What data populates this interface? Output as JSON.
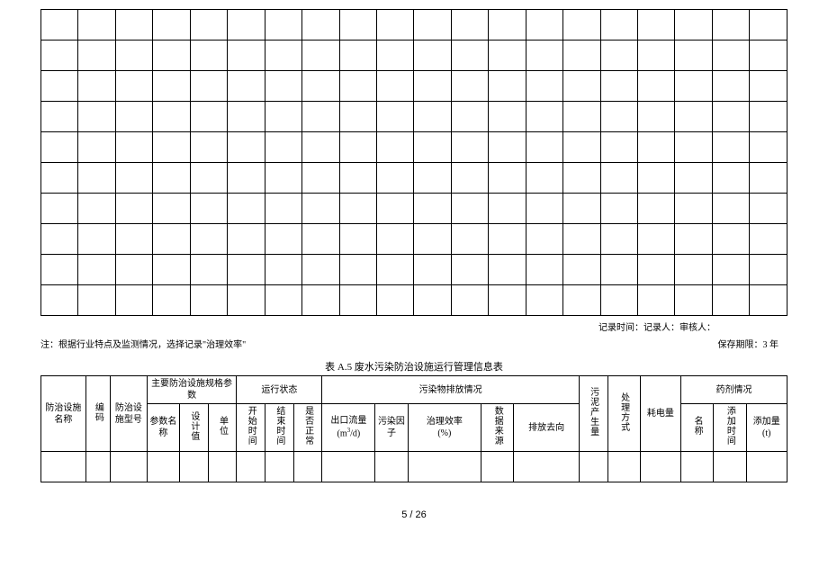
{
  "grid": {
    "cols": 20,
    "rows": 10
  },
  "note_right_top": "记录时间：记录人：审核人：",
  "note_left": "注：根据行业特点及监测情况，选择记录\"治理效率\"",
  "retention": "保存期限：3 年",
  "table_title": "表 A.5 废水污染防治设施运行管理信息表",
  "headers": {
    "h1": "防治设施名称",
    "h2": "编码",
    "h3": "防治设施型号",
    "g1": "主要防治设施规格参数",
    "g1a": "参数名称",
    "g1b": "设计值",
    "g1c": "单位",
    "g2": "运行状态",
    "g2a": "开始时间",
    "g2b": "结束时间",
    "g2c": "是否正常",
    "g3": "污染物排放情况",
    "g3a": "出口流量",
    "g3a_unit": "(m³/d)",
    "g3b": "污染因子",
    "g3c": "治理效率",
    "g3c_unit": "(%)",
    "g3d": "数据来源",
    "g3e": "排放去向",
    "h4": "污泥产生量",
    "h5": "处理方式",
    "h6": "耗电量",
    "g4": "药剂情况",
    "g4a": "名称",
    "g4b": "添加时间",
    "g4c": "添加量",
    "g4c_unit": "(t)"
  },
  "page": "5 / 26"
}
